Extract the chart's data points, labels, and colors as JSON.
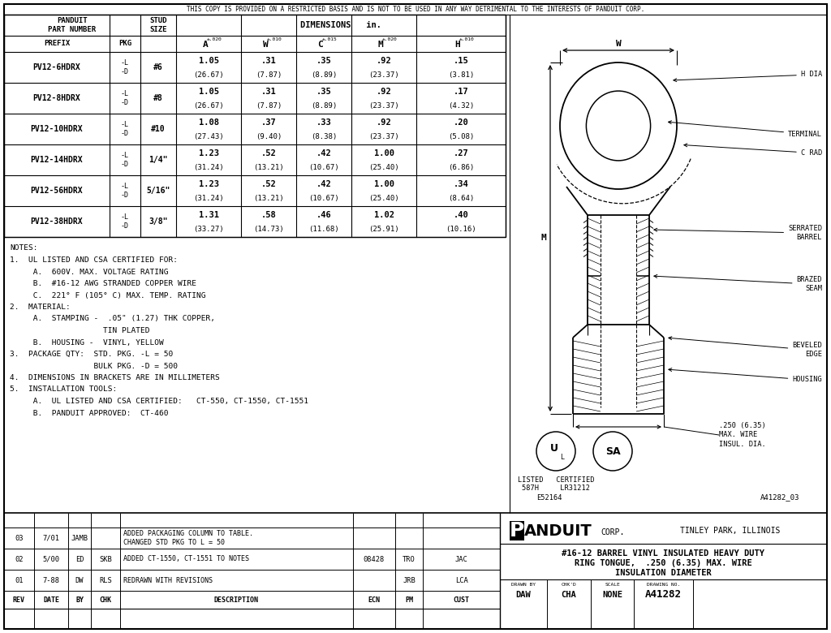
{
  "bg_color": "#FFFFFF",
  "top_notice": "THIS COPY IS PROVIDED ON A RESTRICTED BASIS AND IS NOT TO BE USED IN ANY WAY DETRIMENTAL TO THE INTERESTS OF PANDUIT CORP.",
  "table_rows": [
    [
      "PV12-6HDRX",
      "-L\n-D",
      "#6",
      "1.05\n(26.67)",
      ".31\n(7.87)",
      ".35\n(8.89)",
      ".92\n(23.37)",
      ".15\n(3.81)"
    ],
    [
      "PV12-8HDRX",
      "-L\n-D",
      "#8",
      "1.05\n(26.67)",
      ".31\n(7.87)",
      ".35\n(8.89)",
      ".92\n(23.37)",
      ".17\n(4.32)"
    ],
    [
      "PV12-10HDRX",
      "-L\n-D",
      "#10",
      "1.08\n(27.43)",
      ".37\n(9.40)",
      ".33\n(8.38)",
      ".92\n(23.37)",
      ".20\n(5.08)"
    ],
    [
      "PV12-14HDRX",
      "-L\n-D",
      "1/4\"",
      "1.23\n(31.24)",
      ".52\n(13.21)",
      ".42\n(10.67)",
      "1.00\n(25.40)",
      ".27\n(6.86)"
    ],
    [
      "PV12-56HDRX",
      "-L\n-D",
      "5/16\"",
      "1.23\n(31.24)",
      ".52\n(13.21)",
      ".42\n(10.67)",
      "1.00\n(25.40)",
      ".34\n(8.64)"
    ],
    [
      "PV12-38HDRX",
      "-L\n-D",
      "3/8\"",
      "1.31\n(33.27)",
      ".58\n(14.73)",
      ".46\n(11.68)",
      "1.02\n(25.91)",
      ".40\n(10.16)"
    ]
  ],
  "notes_lines": [
    "NOTES:",
    "1.  UL LISTED AND CSA CERTIFIED FOR:",
    "     A.  600V. MAX. VOLTAGE RATING",
    "     B.  #16-12 AWG STRANDED COPPER WIRE",
    "     C.  221° F (105° C) MAX. TEMP. RATING",
    "2.  MATERIAL:",
    "     A.  STAMPING -  .05\" (1.27) THK COPPER,",
    "                    TIN PLATED",
    "     B.  HOUSING -  VINYL, YELLOW",
    "3.  PACKAGE QTY:  STD. PKG. -L = 50",
    "                  BULK PKG. -D = 500",
    "4.  DIMENSIONS IN BRACKETS ARE IN MILLIMETERS",
    "5.  INSTALLATION TOOLS:",
    "     A.  UL LISTED AND CSA CERTIFIED:   CT-550, CT-1550, CT-1551",
    "     B.  PANDUIT APPROVED:  CT-460"
  ],
  "rev_rows": [
    [
      "03",
      "7/01",
      "JAMB",
      "",
      "ADDED PACKAGING COLUMN TO TABLE.\nCHANGED STD PKG TO L = 50",
      "",
      "",
      ""
    ],
    [
      "02",
      "5/00",
      "ED",
      "SKB",
      "ADDED CT-1550, CT-1551 TO NOTES",
      "08428",
      "TRO",
      "JAC"
    ],
    [
      "01",
      "7-88",
      "DW",
      "RLS",
      "REDRAWN WITH REVISIONS",
      "",
      "JRB",
      "LCA"
    ]
  ]
}
